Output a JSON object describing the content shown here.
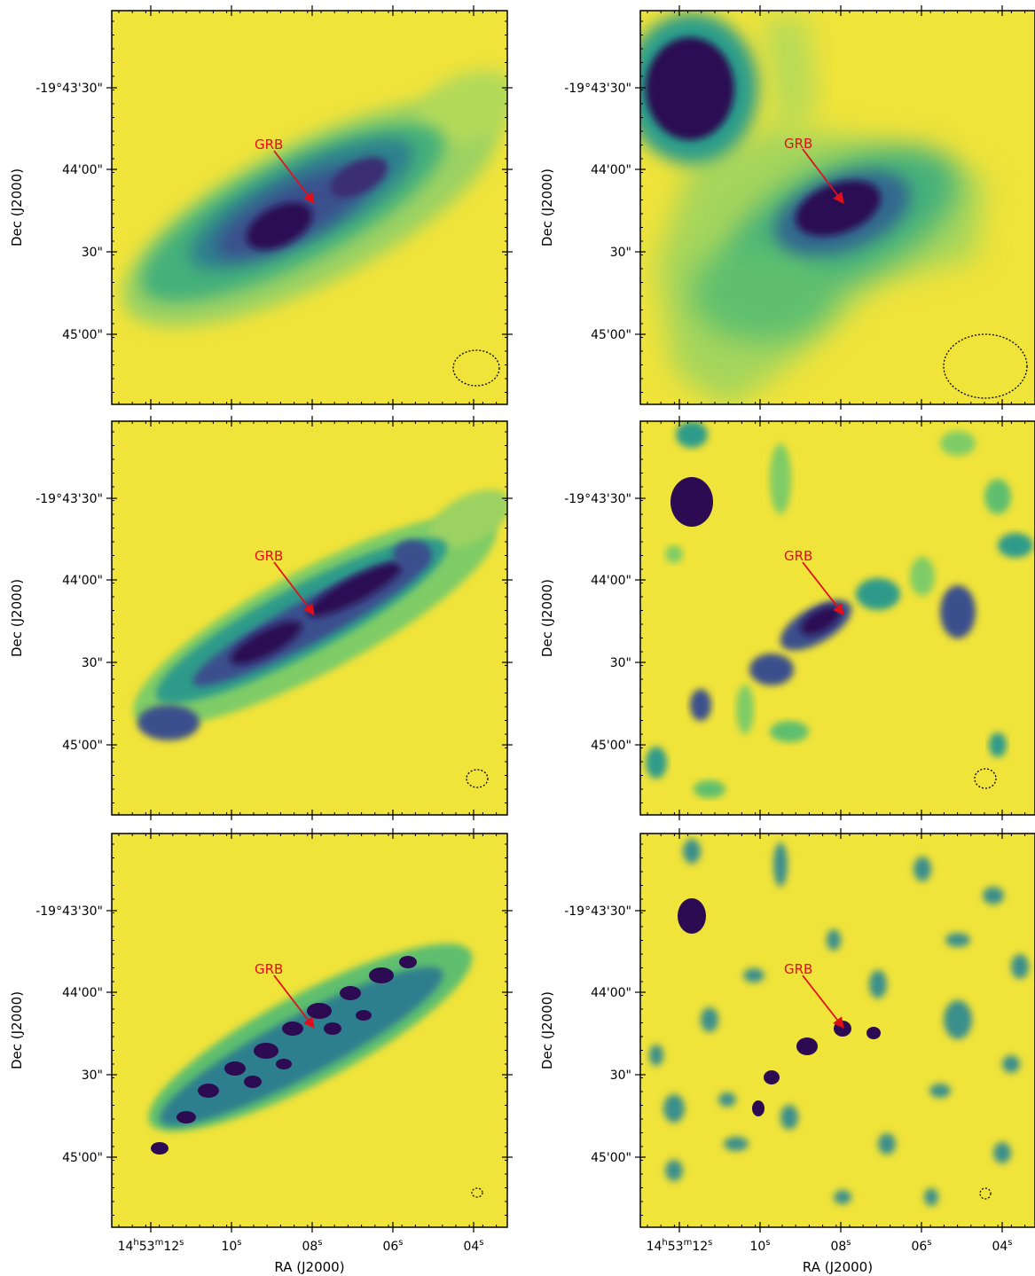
{
  "figure": {
    "axes": {
      "ylabel": "Dec (J2000)",
      "xlabel": "RA (J2000)",
      "yticks": [
        "-19°43'30\"",
        "44'00\"",
        "30\"",
        "45'00\""
      ],
      "xticks": [
        {
          "main": "14",
          "h": "h",
          "m": "53",
          "mm": "m",
          "s": "12",
          "ss": "s"
        },
        {
          "main": "10",
          "ss": "s"
        },
        {
          "main": "08",
          "ss": "s"
        },
        {
          "main": "06",
          "ss": "s"
        },
        {
          "main": "04",
          "ss": "s"
        }
      ]
    },
    "annotation": {
      "label": "GRB",
      "color": "#e0101a"
    },
    "colors": {
      "background": "#f0e33a",
      "light": "#9cd262",
      "mid": "#2f9b8a",
      "dark": "#3b4f8d",
      "darkest": "#2c0b52",
      "frame": "#000000"
    },
    "panels": [
      {
        "name": "top-left-panel",
        "row": 1,
        "col": 1
      },
      {
        "name": "top-right-panel",
        "row": 1,
        "col": 2
      },
      {
        "name": "middle-left-panel",
        "row": 2,
        "col": 1
      },
      {
        "name": "middle-right-panel",
        "row": 2,
        "col": 2
      },
      {
        "name": "bottom-left-panel",
        "row": 3,
        "col": 1
      },
      {
        "name": "bottom-right-panel",
        "row": 3,
        "col": 2
      }
    ]
  }
}
